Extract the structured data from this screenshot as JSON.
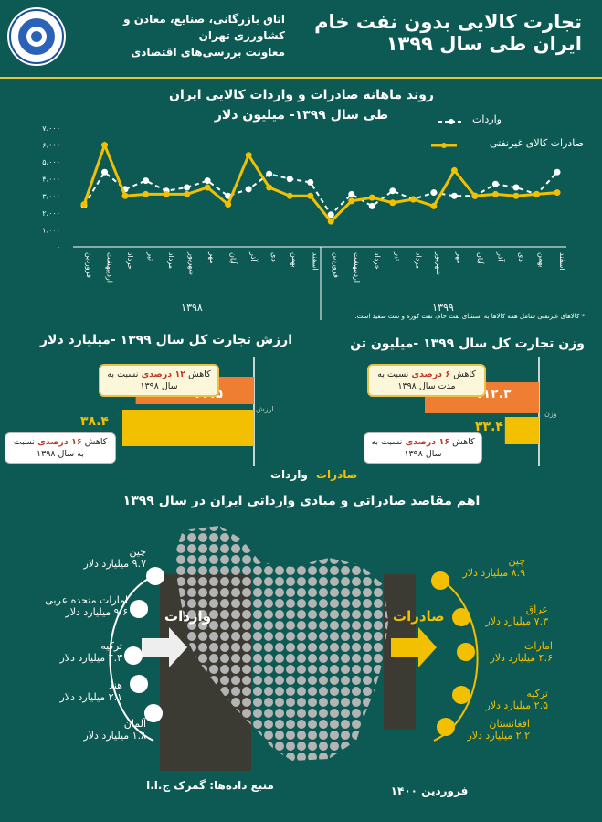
{
  "header": {
    "title_line1": "تجارت کالایی بدون نفت خام",
    "title_line2": "ایران طی سال ۱۳۹۹",
    "org_line1": "اتاق بازرگانی، صنایع، معادن و کشاورزی تهران",
    "org_line2": "معاونت بررسی‌های اقتصادی"
  },
  "colors": {
    "background": "#0c5a53",
    "exports": "#f2c000",
    "imports": "#ffffff",
    "accent_orange": "#ef7d32"
  },
  "line_chart": {
    "title1": "روند ماهانه صادرات و واردات کالایی ایران",
    "title2": "طی سال ۱۳۹۹- میلیون دلار",
    "legend_imports": "واردات",
    "legend_exports": "صادرات کالای غیرنفتی",
    "footnote": "* کالاهای غیرنفتی شامل همه کالاها به استثنای نفت خام، نفت کوره و نفت سفید است.",
    "year1": "۱۳۹۸",
    "year2": "۱۳۹۹"
  },
  "chart_data": {
    "type": "line",
    "title": "روند ماهانه صادرات و واردات کالایی ایران طی سال ۱۳۹۹- میلیون دلار",
    "x": [
      "فروردین",
      "اردیبهشت",
      "خرداد",
      "تیر",
      "مرداد",
      "شهریور",
      "مهر",
      "آبان",
      "آذر",
      "دی",
      "بهمن",
      "اسفند",
      "فروردین",
      "اردیبهشت",
      "خرداد",
      "تیر",
      "مرداد",
      "شهریور",
      "مهر",
      "آبان",
      "آذر",
      "دی",
      "بهمن",
      "اسفند"
    ],
    "yticks": [
      "۷،۰۰۰",
      "۶،۰۰۰",
      "۵،۰۰۰",
      "۴،۰۰۰",
      "۳،۰۰۰",
      "۲،۰۰۰",
      "۱،۰۰۰",
      "۰"
    ],
    "ylim": [
      0,
      7000
    ],
    "series": [
      {
        "name": "واردات",
        "values": [
          2450,
          4400,
          3400,
          3900,
          3300,
          3500,
          3900,
          3000,
          3400,
          4300,
          4000,
          3800,
          1900,
          3100,
          2400,
          3300,
          2800,
          3200,
          3000,
          3000,
          3700,
          3500,
          3100,
          4400
        ]
      },
      {
        "name": "صادرات کالای غیرنفتی",
        "values": [
          2500,
          6000,
          3000,
          3100,
          3100,
          3100,
          3500,
          2500,
          5400,
          3500,
          3000,
          3000,
          1500,
          2700,
          2900,
          2600,
          2800,
          2400,
          4500,
          3000,
          3100,
          3000,
          3100,
          3200
        ]
      }
    ],
    "grid": false,
    "legend": "top-right"
  },
  "weight": {
    "title": "وزن تجارت کل سال ۱۳۹۹ -میلیون تن",
    "exports_label": "صادرات",
    "imports_label": "واردات",
    "axis_label": "وزن",
    "exports_value": "۱۱۲.۳",
    "imports_value": "۳۳.۴",
    "exports_value_num": 112.3,
    "imports_value_num": 33.4,
    "callout_exports": {
      "a": "کاهش ",
      "b": "۶ درصدی",
      "c": " نسبت به مدت سال ۱۳۹۸"
    },
    "callout_imports": {
      "a": "کاهش ",
      "b": "۱۶ درصدی",
      "c": " نسبت به سال ۱۳۹۸"
    }
  },
  "value": {
    "title": "ارزش تجارت کل سال ۱۳۹۹ -میلیارد دلار",
    "exports_label": "صادرات",
    "imports_label": "واردات",
    "axis_label": "ارزش",
    "exports_value": "۳۴.۵",
    "imports_value": "۳۸.۴",
    "exports_value_num": 34.5,
    "imports_value_num": 38.4,
    "callout_exports": {
      "a": "کاهش ",
      "b": "۱۲ درصدی",
      "c": " نسبت به سال ۱۳۹۸"
    },
    "callout_imports": {
      "a": "کاهش ",
      "b": "۱۶ درصدی",
      "c": " نسبت به سال ۱۳۹۸"
    }
  },
  "partners": {
    "title": "اهم مقاصد صادراتی و مبادی وارداتی ایران در سال ۱۳۹۹",
    "imports_label": "واردات",
    "exports_label": "صادرات",
    "imports": [
      {
        "country": "چین",
        "value": "۹.۷ میلیارد دلار"
      },
      {
        "country": "امارات متحده عربی",
        "value": "۹.۶ میلیارد دلار"
      },
      {
        "country": "ترکیه",
        "value": "۴.۳ میلیارد دلار"
      },
      {
        "country": "هند",
        "value": "۲.۱ میلیارد دلار"
      },
      {
        "country": "آلمان",
        "value": "۱.۸ میلیارد دلار"
      }
    ],
    "exports": [
      {
        "country": "چین",
        "value": "۸.۹ میلیارد دلار"
      },
      {
        "country": "عراق",
        "value": "۷.۳ میلیارد دلار"
      },
      {
        "country": "امارات",
        "value": "۴.۶ میلیارد دلار"
      },
      {
        "country": "ترکیه",
        "value": "۲.۵ میلیارد دلار"
      },
      {
        "country": "افغانستان",
        "value": "۲.۲ میلیارد دلار"
      }
    ]
  },
  "footer": {
    "source": "منبع داده‌ها: گمرک ج.ا.ا",
    "date": "فروردین ۱۴۰۰"
  }
}
